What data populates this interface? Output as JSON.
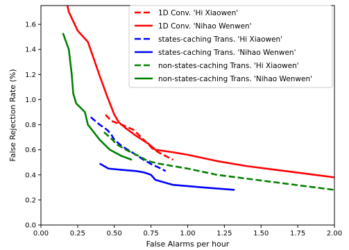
{
  "chart_data": {
    "type": "line",
    "xlabel": "False Alarms per hour",
    "ylabel": "False Rejection Rate (%)",
    "xlim": [
      0.0,
      2.0
    ],
    "ylim": [
      0.0,
      1.75
    ],
    "xticks": [
      0.0,
      0.25,
      0.5,
      0.75,
      1.0,
      1.25,
      1.5,
      1.75,
      2.0
    ],
    "xtick_labels": [
      "0.00",
      "0.25",
      "0.50",
      "0.75",
      "1.00",
      "1.25",
      "1.50",
      "1.75",
      "2.00"
    ],
    "yticks": [
      0.0,
      0.2,
      0.4,
      0.6,
      0.8,
      1.0,
      1.2,
      1.4,
      1.6
    ],
    "ytick_labels": [
      "0.0",
      "0.2",
      "0.4",
      "0.6",
      "0.8",
      "1.0",
      "1.2",
      "1.4",
      "1.6"
    ],
    "grid": false,
    "legend_position": "top-right",
    "series": [
      {
        "name": "1D Conv. 'Hi Xiaowen'",
        "color": "#ff0000",
        "dash": "dashed",
        "points": [
          [
            0.44,
            0.88
          ],
          [
            0.48,
            0.83
          ],
          [
            0.55,
            0.8
          ],
          [
            0.63,
            0.76
          ],
          [
            0.7,
            0.68
          ],
          [
            0.76,
            0.61
          ],
          [
            0.8,
            0.58
          ],
          [
            0.85,
            0.55
          ],
          [
            0.9,
            0.52
          ]
        ]
      },
      {
        "name": "1D Conv. 'Nihao Wenwen'",
        "color": "#ff0000",
        "dash": "solid",
        "points": [
          [
            0.18,
            1.75
          ],
          [
            0.19,
            1.7
          ],
          [
            0.25,
            1.55
          ],
          [
            0.32,
            1.46
          ],
          [
            0.35,
            1.36
          ],
          [
            0.4,
            1.19
          ],
          [
            0.45,
            1.03
          ],
          [
            0.5,
            0.88
          ],
          [
            0.53,
            0.82
          ],
          [
            0.58,
            0.77
          ],
          [
            0.65,
            0.71
          ],
          [
            0.73,
            0.65
          ],
          [
            0.78,
            0.6
          ],
          [
            0.9,
            0.58
          ],
          [
            1.0,
            0.56
          ],
          [
            1.2,
            0.51
          ],
          [
            1.4,
            0.47
          ],
          [
            1.6,
            0.44
          ],
          [
            1.8,
            0.41
          ],
          [
            2.0,
            0.38
          ]
        ]
      },
      {
        "name": "states-caching Trans. 'Hi Xiaowen'",
        "color": "#0000ff",
        "dash": "dashed",
        "points": [
          [
            0.34,
            0.86
          ],
          [
            0.4,
            0.8
          ],
          [
            0.45,
            0.76
          ],
          [
            0.48,
            0.72
          ],
          [
            0.5,
            0.68
          ],
          [
            0.55,
            0.63
          ],
          [
            0.62,
            0.58
          ],
          [
            0.7,
            0.52
          ],
          [
            0.76,
            0.48
          ],
          [
            0.8,
            0.46
          ],
          [
            0.85,
            0.43
          ]
        ]
      },
      {
        "name": "states-caching Trans. 'Nihao Wenwen'",
        "color": "#0000ff",
        "dash": "solid",
        "points": [
          [
            0.4,
            0.49
          ],
          [
            0.46,
            0.45
          ],
          [
            0.55,
            0.44
          ],
          [
            0.65,
            0.43
          ],
          [
            0.7,
            0.42
          ],
          [
            0.75,
            0.4
          ],
          [
            0.78,
            0.36
          ],
          [
            0.9,
            0.32
          ],
          [
            1.1,
            0.3
          ],
          [
            1.32,
            0.28
          ]
        ]
      },
      {
        "name": "non-states-caching Trans. 'Hi Xiaowen'",
        "color": "#008000",
        "dash": "dashed",
        "points": [
          [
            0.43,
            0.74
          ],
          [
            0.47,
            0.7
          ],
          [
            0.52,
            0.64
          ],
          [
            0.58,
            0.6
          ],
          [
            0.65,
            0.56
          ],
          [
            0.73,
            0.51
          ],
          [
            0.8,
            0.49
          ],
          [
            0.9,
            0.47
          ],
          [
            1.0,
            0.45
          ],
          [
            1.2,
            0.4
          ],
          [
            1.4,
            0.37
          ],
          [
            1.6,
            0.34
          ],
          [
            1.8,
            0.31
          ],
          [
            2.0,
            0.28
          ]
        ]
      },
      {
        "name": "non-states-caching Trans. 'Nihao Wenwen'",
        "color": "#008000",
        "dash": "solid",
        "points": [
          [
            0.15,
            1.53
          ],
          [
            0.19,
            1.4
          ],
          [
            0.21,
            1.2
          ],
          [
            0.22,
            1.05
          ],
          [
            0.24,
            0.97
          ],
          [
            0.3,
            0.9
          ],
          [
            0.32,
            0.8
          ],
          [
            0.34,
            0.77
          ],
          [
            0.4,
            0.68
          ],
          [
            0.47,
            0.6
          ],
          [
            0.55,
            0.55
          ],
          [
            0.62,
            0.52
          ]
        ]
      }
    ]
  }
}
